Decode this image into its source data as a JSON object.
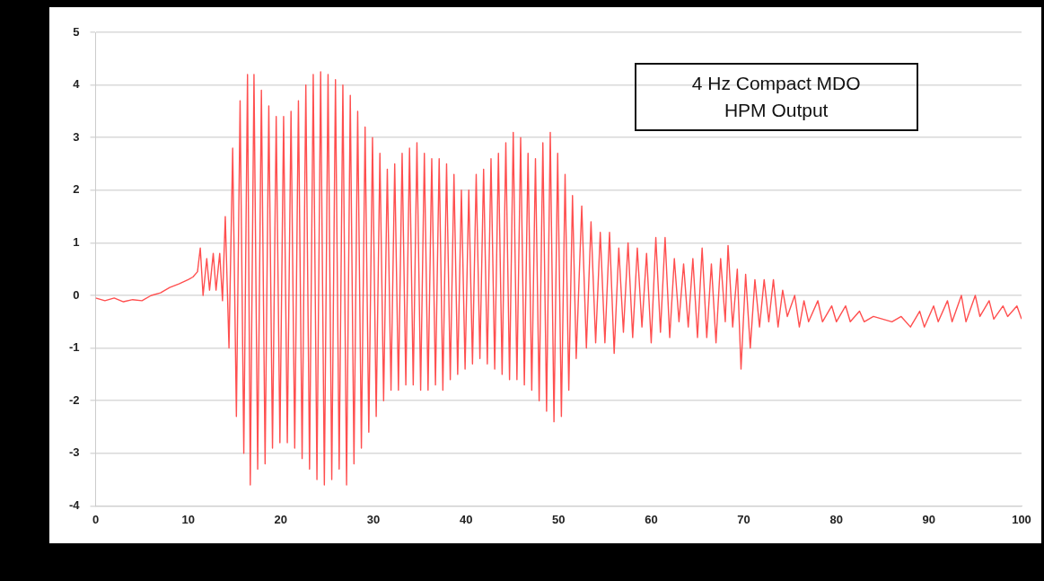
{
  "chart_data": {
    "type": "line",
    "annotations": [
      "4 Hz Compact MDO\nHPM Output"
    ],
    "x": [
      0,
      1,
      2,
      3,
      4,
      5,
      6,
      7,
      8,
      9,
      10,
      10.5,
      11,
      11.3,
      11.6,
      12,
      12.3,
      12.7,
      13,
      13.4,
      13.7,
      14,
      14.4,
      14.8,
      15.2,
      15.6,
      16,
      16.4,
      16.7,
      17.1,
      17.5,
      17.9,
      18.3,
      18.7,
      19.1,
      19.5,
      19.9,
      20.3,
      20.7,
      21.1,
      21.5,
      21.9,
      22.3,
      22.7,
      23.1,
      23.5,
      23.9,
      24.3,
      24.7,
      25.1,
      25.5,
      25.9,
      26.3,
      26.7,
      27.1,
      27.5,
      27.9,
      28.3,
      28.7,
      29.1,
      29.5,
      29.9,
      30.3,
      30.7,
      31.1,
      31.5,
      31.9,
      32.3,
      32.7,
      33.1,
      33.5,
      33.9,
      34.3,
      34.7,
      35.1,
      35.5,
      35.9,
      36.3,
      36.7,
      37.1,
      37.5,
      37.9,
      38.3,
      38.7,
      39.1,
      39.5,
      39.9,
      40.3,
      40.7,
      41.1,
      41.5,
      41.9,
      42.3,
      42.7,
      43.1,
      43.5,
      43.9,
      44.3,
      44.7,
      45.1,
      45.5,
      45.9,
      46.3,
      46.7,
      47.1,
      47.5,
      47.9,
      48.3,
      48.7,
      49.1,
      49.5,
      49.9,
      50.3,
      50.7,
      51.1,
      51.5,
      51.9,
      52.5,
      53,
      53.5,
      54,
      54.5,
      55,
      55.5,
      56,
      56.5,
      57,
      57.5,
      58,
      58.5,
      59,
      59.5,
      60,
      60.5,
      61,
      61.5,
      62,
      62.5,
      63,
      63.5,
      64,
      64.5,
      65,
      65.5,
      66,
      66.5,
      67,
      67.5,
      68,
      68.3,
      68.8,
      69.3,
      69.7,
      70.2,
      70.7,
      71.2,
      71.7,
      72.2,
      72.7,
      73.2,
      73.7,
      74.2,
      74.7,
      75.5,
      76,
      76.5,
      77,
      78,
      78.5,
      79.5,
      80,
      81,
      81.5,
      82.5,
      83,
      84,
      85,
      86,
      87,
      88,
      89,
      89.5,
      90.5,
      91,
      92,
      92.5,
      93.5,
      94,
      95,
      95.5,
      96.5,
      97,
      98,
      98.5,
      99.5,
      100
    ],
    "series": [
      {
        "color": "#ff4f4f",
        "values": [
          -0.05,
          -0.1,
          -0.05,
          -0.12,
          -0.08,
          -0.1,
          0,
          0.05,
          0.15,
          0.22,
          0.3,
          0.35,
          0.45,
          0.9,
          0.0,
          0.7,
          0.1,
          0.8,
          0.1,
          0.8,
          -0.1,
          1.5,
          -1.0,
          2.8,
          -2.3,
          3.7,
          -3.0,
          4.2,
          -3.6,
          4.2,
          -3.3,
          3.9,
          -3.2,
          3.6,
          -2.9,
          3.4,
          -2.8,
          3.4,
          -2.8,
          3.5,
          -2.9,
          3.7,
          -3.1,
          4.0,
          -3.3,
          4.2,
          -3.5,
          4.25,
          -3.6,
          4.2,
          -3.5,
          4.1,
          -3.3,
          4.0,
          -3.6,
          3.8,
          -3.2,
          3.5,
          -2.9,
          3.2,
          -2.6,
          3.0,
          -2.3,
          2.7,
          -2.0,
          2.4,
          -1.8,
          2.5,
          -1.8,
          2.7,
          -1.7,
          2.8,
          -1.7,
          2.9,
          -1.8,
          2.7,
          -1.8,
          2.6,
          -1.7,
          2.6,
          -1.8,
          2.5,
          -1.6,
          2.3,
          -1.5,
          2.0,
          -1.4,
          2.0,
          -1.3,
          2.3,
          -1.2,
          2.4,
          -1.3,
          2.6,
          -1.4,
          2.7,
          -1.5,
          2.9,
          -1.6,
          3.1,
          -1.6,
          3.0,
          -1.7,
          2.7,
          -1.8,
          2.6,
          -2.0,
          2.9,
          -2.2,
          3.1,
          -2.4,
          2.7,
          -2.3,
          2.3,
          -1.8,
          1.9,
          -1.2,
          1.7,
          -1.0,
          1.4,
          -0.9,
          1.2,
          -0.9,
          1.2,
          -1.1,
          0.9,
          -0.7,
          1.0,
          -0.8,
          0.9,
          -0.6,
          0.8,
          -0.9,
          1.1,
          -0.7,
          1.1,
          -0.8,
          0.7,
          -0.5,
          0.6,
          -0.6,
          0.7,
          -0.8,
          0.9,
          -0.8,
          0.6,
          -0.9,
          0.7,
          -0.5,
          0.95,
          -0.6,
          0.5,
          -1.4,
          0.4,
          -1.0,
          0.3,
          -0.6,
          0.3,
          -0.5,
          0.3,
          -0.6,
          0.1,
          -0.4,
          0.0,
          -0.6,
          -0.1,
          -0.5,
          -0.1,
          -0.5,
          -0.2,
          -0.5,
          -0.2,
          -0.5,
          -0.3,
          -0.5,
          -0.4,
          -0.45,
          -0.5,
          -0.4,
          -0.6,
          -0.3,
          -0.6,
          -0.2,
          -0.5,
          -0.1,
          -0.5,
          0.0,
          -0.5,
          0.0,
          -0.4,
          -0.1,
          -0.45,
          -0.2,
          -0.4,
          -0.2,
          -0.45
        ]
      }
    ],
    "xlim": [
      0,
      100
    ],
    "xticks": [
      0,
      10,
      20,
      30,
      40,
      50,
      60,
      70,
      80,
      90,
      100
    ],
    "ylim": [
      -4,
      5
    ],
    "yticks": [
      -4,
      -3,
      -2,
      -1,
      0,
      1,
      2,
      3,
      4,
      5
    ],
    "grid": "y",
    "marker": "none",
    "line_style": "solid"
  }
}
